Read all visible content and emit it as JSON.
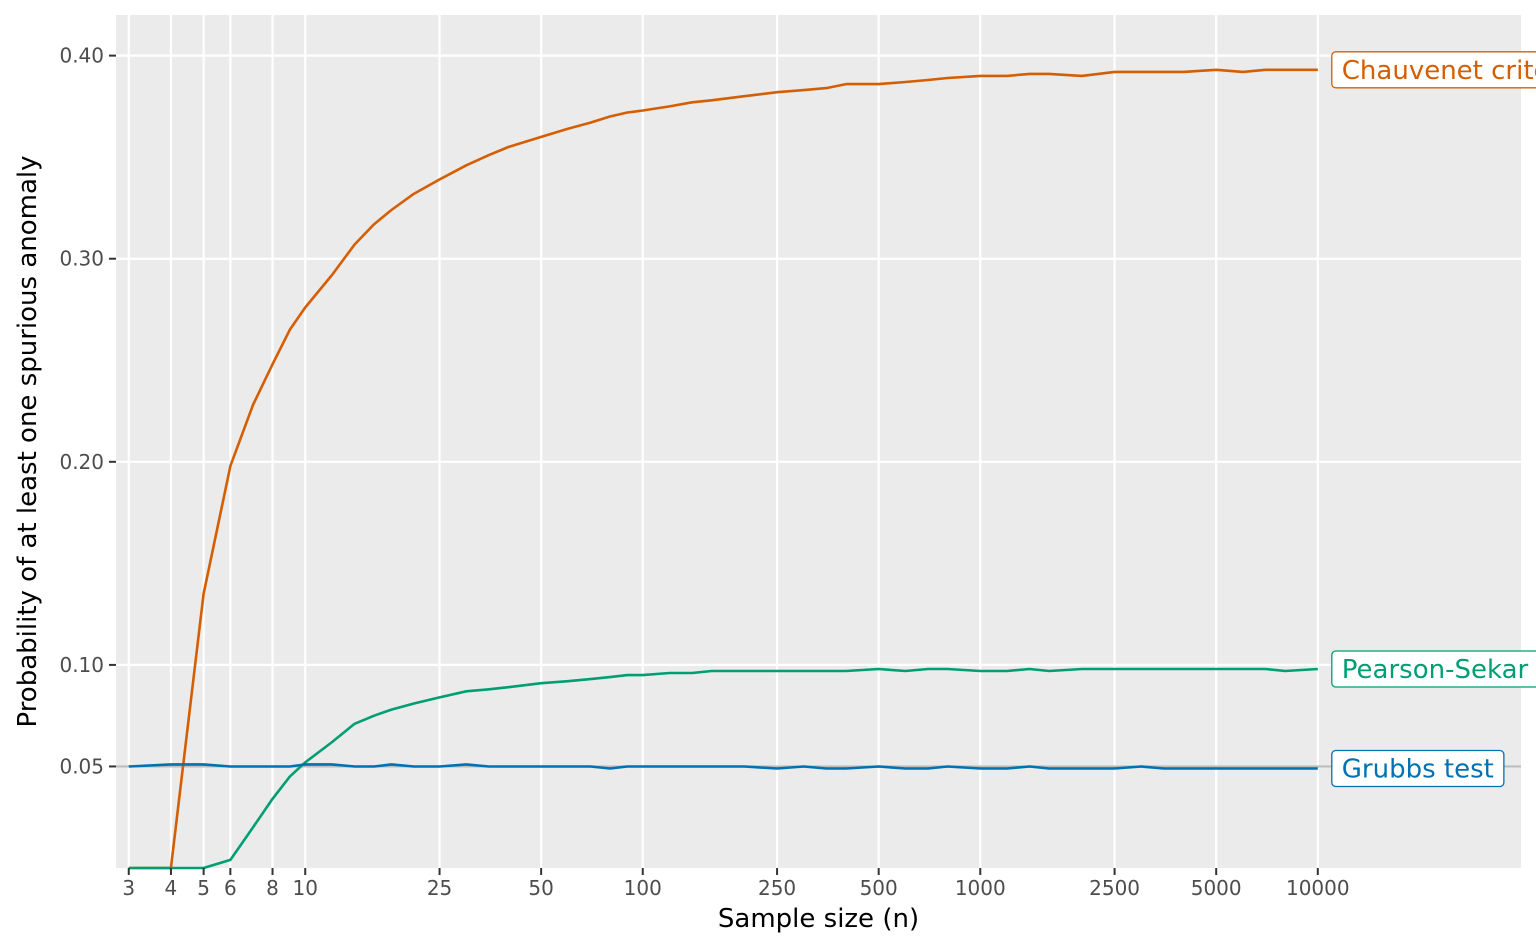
{
  "chart_data": {
    "type": "line",
    "title": "",
    "xlabel": "Sample size (n)",
    "ylabel": "Probability of at least one spurious anomaly",
    "x_scale": "log",
    "xlim": [
      2.75,
      40000
    ],
    "ylim": [
      0.0,
      0.42
    ],
    "x_ticks": [
      3,
      4,
      5,
      6,
      8,
      10,
      25,
      50,
      100,
      250,
      500,
      1000,
      2500,
      5000,
      10000
    ],
    "x_tick_labels": [
      "3",
      "4",
      "5",
      "6",
      "8",
      "10",
      "25",
      "50",
      "100",
      "250",
      "500",
      "1000",
      "2500",
      "5000",
      "10000"
    ],
    "y_ticks": [
      0.05,
      0.1,
      0.2,
      0.3,
      0.4
    ],
    "y_tick_labels": [
      "0.05",
      "0.10",
      "0.20",
      "0.30",
      "0.40"
    ],
    "reference_line": {
      "y": 0.05,
      "color": "#bdbdbd"
    },
    "panel_background": "#ebebeb",
    "grid_color": "#ffffff",
    "series": [
      {
        "name": "Chauvenet criterion",
        "color": "#d55e00",
        "x": [
          3,
          4,
          5,
          6,
          7,
          8,
          9,
          10,
          12,
          14,
          16,
          18,
          21,
          25,
          30,
          35,
          40,
          50,
          60,
          70,
          80,
          90,
          100,
          120,
          140,
          160,
          200,
          250,
          300,
          350,
          400,
          500,
          600,
          700,
          800,
          1000,
          1200,
          1400,
          1600,
          2000,
          2500,
          3000,
          3500,
          4000,
          5000,
          6000,
          7000,
          8000,
          10000
        ],
        "y": [
          0.0,
          0.0,
          0.135,
          0.198,
          0.228,
          0.248,
          0.265,
          0.276,
          0.292,
          0.307,
          0.317,
          0.324,
          0.332,
          0.339,
          0.346,
          0.351,
          0.355,
          0.36,
          0.364,
          0.367,
          0.37,
          0.372,
          0.373,
          0.375,
          0.377,
          0.378,
          0.38,
          0.382,
          0.383,
          0.384,
          0.386,
          0.386,
          0.387,
          0.388,
          0.389,
          0.39,
          0.39,
          0.391,
          0.391,
          0.39,
          0.392,
          0.392,
          0.392,
          0.392,
          0.393,
          0.392,
          0.393,
          0.393,
          0.393
        ]
      },
      {
        "name": "Pearson-Sekar test",
        "color": "#009e73",
        "x": [
          3,
          4,
          5,
          6,
          7,
          8,
          9,
          10,
          12,
          14,
          16,
          18,
          21,
          25,
          30,
          35,
          40,
          50,
          60,
          70,
          80,
          90,
          100,
          120,
          140,
          160,
          200,
          250,
          300,
          350,
          400,
          500,
          600,
          700,
          800,
          1000,
          1200,
          1400,
          1600,
          2000,
          2500,
          3000,
          3500,
          4000,
          5000,
          6000,
          7000,
          8000,
          10000
        ],
        "y": [
          0.0,
          0.0,
          0.0,
          0.004,
          0.02,
          0.034,
          0.045,
          0.052,
          0.062,
          0.071,
          0.075,
          0.078,
          0.081,
          0.084,
          0.087,
          0.088,
          0.089,
          0.091,
          0.092,
          0.093,
          0.094,
          0.095,
          0.095,
          0.096,
          0.096,
          0.097,
          0.097,
          0.097,
          0.097,
          0.097,
          0.097,
          0.098,
          0.097,
          0.098,
          0.098,
          0.097,
          0.097,
          0.098,
          0.097,
          0.098,
          0.098,
          0.098,
          0.098,
          0.098,
          0.098,
          0.098,
          0.098,
          0.097,
          0.098
        ]
      },
      {
        "name": "Grubbs test",
        "color": "#0072b2",
        "x": [
          3,
          4,
          5,
          6,
          7,
          8,
          9,
          10,
          12,
          14,
          16,
          18,
          21,
          25,
          30,
          35,
          40,
          50,
          60,
          70,
          80,
          90,
          100,
          120,
          140,
          160,
          200,
          250,
          300,
          350,
          400,
          500,
          600,
          700,
          800,
          1000,
          1200,
          1400,
          1600,
          2000,
          2500,
          3000,
          3500,
          4000,
          5000,
          6000,
          7000,
          8000,
          10000
        ],
        "y": [
          0.05,
          0.051,
          0.051,
          0.05,
          0.05,
          0.05,
          0.05,
          0.051,
          0.051,
          0.05,
          0.05,
          0.051,
          0.05,
          0.05,
          0.051,
          0.05,
          0.05,
          0.05,
          0.05,
          0.05,
          0.049,
          0.05,
          0.05,
          0.05,
          0.05,
          0.05,
          0.05,
          0.049,
          0.05,
          0.049,
          0.049,
          0.05,
          0.049,
          0.049,
          0.05,
          0.049,
          0.049,
          0.05,
          0.049,
          0.049,
          0.049,
          0.05,
          0.049,
          0.049,
          0.049,
          0.049,
          0.049,
          0.049,
          0.049
        ]
      }
    ]
  }
}
